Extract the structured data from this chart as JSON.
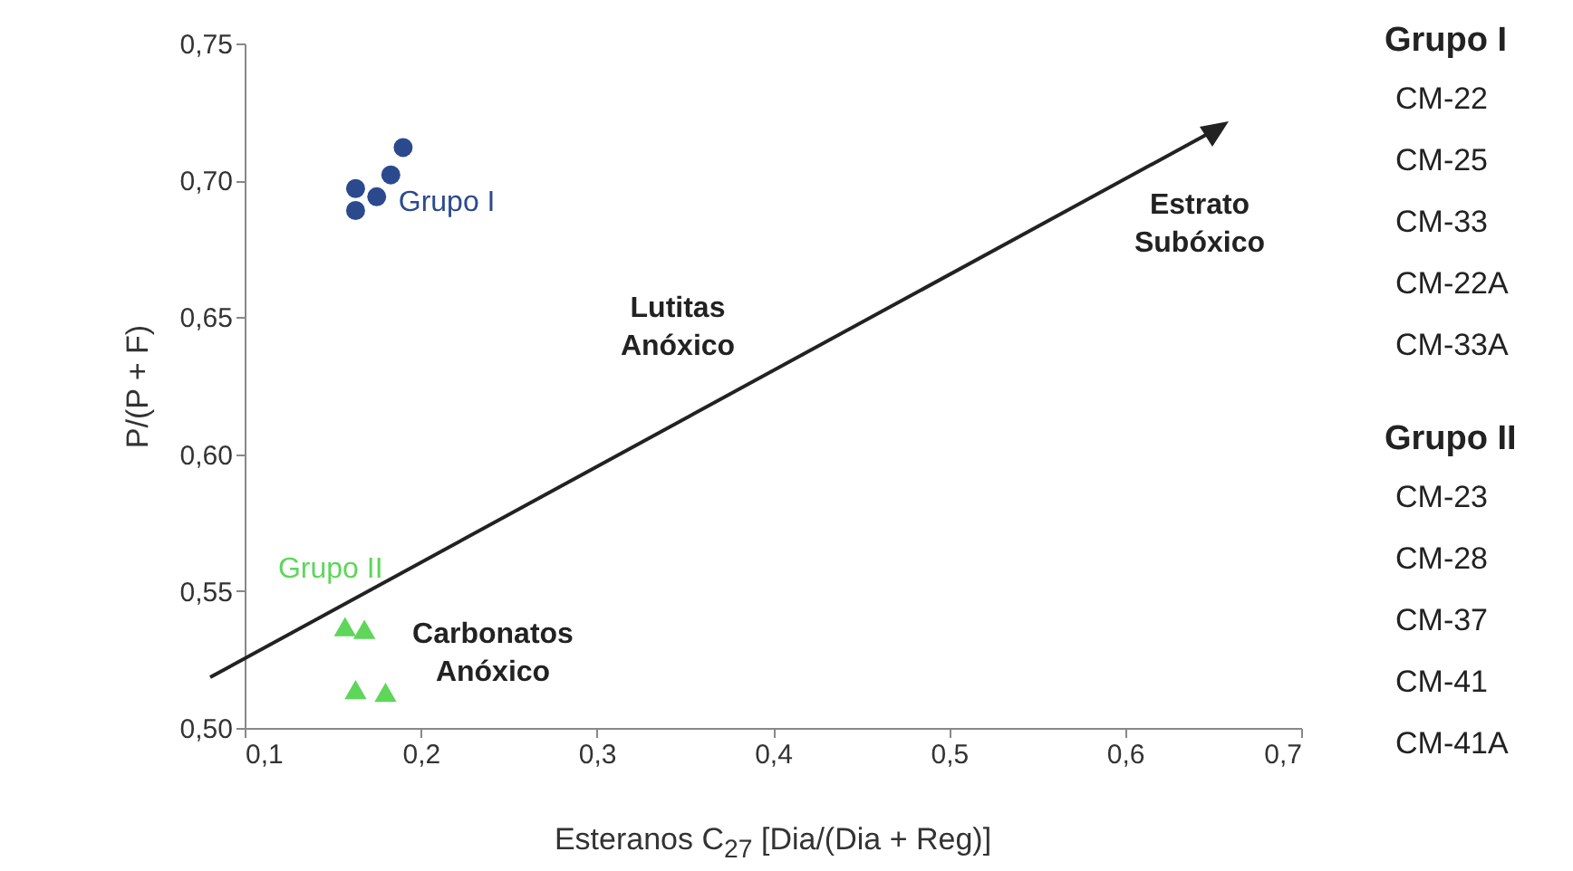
{
  "chart_data": {
    "type": "scatter",
    "xlabel": "Esteranos C$_{27}$ [Dia/(Dia + Reg)]",
    "ylabel": "P/(P + F)",
    "xlim": [
      0.1,
      0.7
    ],
    "ylim": [
      0.5,
      0.75
    ],
    "xticks": [
      {
        "value": 0.1,
        "label": "0,1"
      },
      {
        "value": 0.2,
        "label": "0,2"
      },
      {
        "value": 0.3,
        "label": "0,3"
      },
      {
        "value": 0.4,
        "label": "0,4"
      },
      {
        "value": 0.5,
        "label": "0,5"
      },
      {
        "value": 0.6,
        "label": "0,6"
      },
      {
        "value": 0.7,
        "label": "0,7"
      }
    ],
    "yticks": [
      {
        "value": 0.5,
        "label": "0,50"
      },
      {
        "value": 0.55,
        "label": "0,55"
      },
      {
        "value": 0.6,
        "label": "0,60"
      },
      {
        "value": 0.65,
        "label": "0,65"
      },
      {
        "value": 0.7,
        "label": "0,70"
      },
      {
        "value": 0.75,
        "label": "0,75"
      }
    ],
    "series": [
      {
        "name": "Grupo I",
        "color": "#2b4a8e",
        "marker": "circle",
        "x": [
          0.175,
          0.163,
          0.163,
          0.183,
          0.19
        ],
        "values": [
          0.694,
          0.697,
          0.689,
          0.702,
          0.712
        ]
      },
      {
        "name": "Grupo II",
        "color": "#5ed65a",
        "marker": "triangle",
        "x": [
          0.157,
          0.168,
          0.163,
          0.18
        ],
        "values": [
          0.537,
          0.536,
          0.514,
          0.513
        ]
      }
    ],
    "annotations": [
      "Lutitas\nAnóxico",
      "Estrato\nSubóxico",
      "Carbonatos\nAnóxico",
      "Grupo I",
      "CM-22",
      "CM-25",
      "CM-33",
      "CM-22A",
      "CM-33A",
      "Grupo II",
      "CM-23",
      "CM-28",
      "CM-37",
      "CM-41",
      "CM-41A"
    ]
  }
}
